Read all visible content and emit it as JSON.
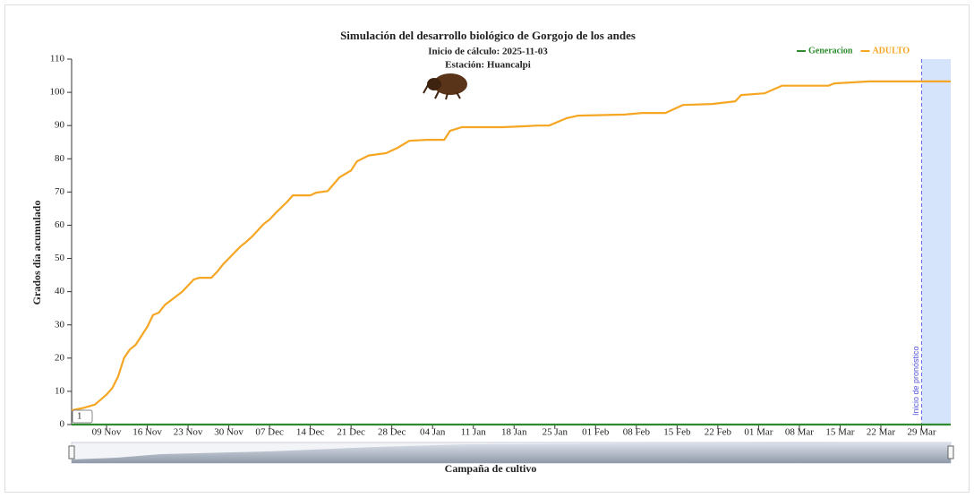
{
  "chart_data": {
    "type": "line",
    "title": "Simulación del desarrollo biológico de Gorgojo de los andes",
    "subtitle": [
      "Inicio de cálculo: 2025-11-03",
      "Estación: Huancalpi"
    ],
    "x_label": "Campaña de cultivo",
    "y_label": "Grados día acumulado",
    "xlim": [
      "2025-11-03",
      "2026-04-03"
    ],
    "xticks": [
      {
        "value": "2025-11-09",
        "label": "09 Nov"
      },
      {
        "value": "2025-11-16",
        "label": "16 Nov"
      },
      {
        "value": "2025-11-23",
        "label": "23 Nov"
      },
      {
        "value": "2025-11-30",
        "label": "30 Nov"
      },
      {
        "value": "2025-12-07",
        "label": "07 Dec"
      },
      {
        "value": "2025-12-14",
        "label": "14 Dec"
      },
      {
        "value": "2025-12-21",
        "label": "21 Dec"
      },
      {
        "value": "2025-12-28",
        "label": "28 Dec"
      },
      {
        "value": "2026-01-04",
        "label": "04 Jan"
      },
      {
        "value": "2026-01-11",
        "label": "11 Jan"
      },
      {
        "value": "2026-01-18",
        "label": "18 Jan"
      },
      {
        "value": "2026-01-25",
        "label": "25 Jan"
      },
      {
        "value": "2026-02-01",
        "label": "01 Feb"
      },
      {
        "value": "2026-02-08",
        "label": "08 Feb"
      },
      {
        "value": "2026-02-15",
        "label": "15 Feb"
      },
      {
        "value": "2026-02-22",
        "label": "22 Feb"
      },
      {
        "value": "2026-03-01",
        "label": "01 Mar"
      },
      {
        "value": "2026-03-08",
        "label": "08 Mar"
      },
      {
        "value": "2026-03-15",
        "label": "15 Mar"
      },
      {
        "value": "2026-03-22",
        "label": "22 Mar"
      },
      {
        "value": "2026-03-29",
        "label": "29 Mar"
      }
    ],
    "ylim": [
      0,
      110
    ],
    "yticks": [
      0,
      10,
      20,
      30,
      40,
      50,
      60,
      70,
      80,
      90,
      100,
      110
    ],
    "forecast": {
      "start": "2026-03-29",
      "label": "Inicio de pronóstico",
      "color": "#d6e4fb"
    },
    "generation_label": "1",
    "series": [
      {
        "name": "Generacion",
        "color": "#2e8b2e",
        "x": [
          "2025-11-03",
          "2026-04-03"
        ],
        "values": [
          0,
          0
        ]
      },
      {
        "name": "ADULTO",
        "color": "#f5a623",
        "x": [
          "2025-11-03",
          "2025-11-05",
          "2025-11-07",
          "2025-11-08",
          "2025-11-09",
          "2025-11-10",
          "2025-11-11",
          "2025-11-12",
          "2025-11-13",
          "2025-11-14",
          "2025-11-15",
          "2025-11-16",
          "2025-11-17",
          "2025-11-18",
          "2025-11-19",
          "2025-11-22",
          "2025-11-24",
          "2025-11-25",
          "2025-11-27",
          "2025-11-28",
          "2025-11-29",
          "2025-12-02",
          "2025-12-03",
          "2025-12-04",
          "2025-12-06",
          "2025-12-07",
          "2025-12-08",
          "2025-12-10",
          "2025-12-11",
          "2025-12-14",
          "2025-12-15",
          "2025-12-17",
          "2025-12-19",
          "2025-12-21",
          "2025-12-22",
          "2025-12-24",
          "2025-12-27",
          "2025-12-29",
          "2025-12-31",
          "2026-01-03",
          "2026-01-06",
          "2026-01-07",
          "2026-01-09",
          "2026-01-16",
          "2026-01-20",
          "2026-01-22",
          "2026-01-24",
          "2026-01-27",
          "2026-01-29",
          "2026-02-06",
          "2026-02-09",
          "2026-02-13",
          "2026-02-16",
          "2026-02-21",
          "2026-02-25",
          "2026-02-26",
          "2026-03-02",
          "2026-03-05",
          "2026-03-13",
          "2026-03-14",
          "2026-03-20",
          "2026-04-03"
        ],
        "values": [
          4.3,
          5,
          6,
          7.5,
          9,
          11,
          14.5,
          20,
          22.6,
          24,
          26.7,
          29.4,
          33,
          33.7,
          36,
          40,
          43.7,
          44.2,
          44.2,
          46,
          48.2,
          53.6,
          55,
          56.6,
          60.4,
          61.7,
          63.6,
          67,
          69,
          69,
          69.8,
          70.3,
          74.4,
          76.5,
          79.2,
          81,
          81.7,
          83.3,
          85.4,
          85.7,
          85.7,
          88.4,
          89.5,
          89.5,
          89.8,
          90,
          90,
          92.2,
          93,
          93.3,
          93.8,
          93.8,
          96.2,
          96.5,
          97.3,
          99.2,
          99.7,
          102,
          102,
          102.7,
          103.3,
          103.3
        ]
      }
    ]
  }
}
